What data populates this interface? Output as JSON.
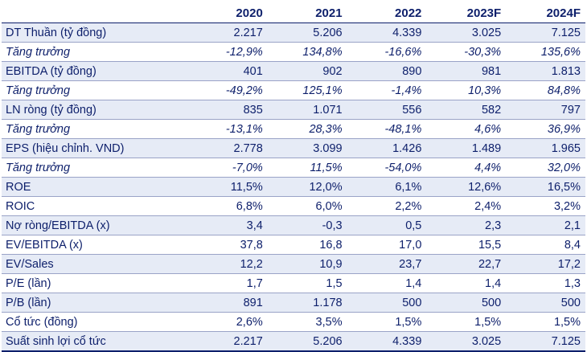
{
  "table": {
    "headers": [
      "",
      "2020",
      "2021",
      "2022",
      "2023F",
      "2024F"
    ],
    "rows": [
      {
        "label": "DT Thuần (tỷ đồng)",
        "values": [
          "2.217",
          "5.206",
          "4.339",
          "3.025",
          "7.125"
        ],
        "italic": false
      },
      {
        "label": "Tăng trưởng",
        "values": [
          "-12,9%",
          "134,8%",
          "-16,6%",
          "-30,3%",
          "135,6%"
        ],
        "italic": true
      },
      {
        "label": "EBITDA (tỷ đồng)",
        "values": [
          "401",
          "902",
          "890",
          "981",
          "1.813"
        ],
        "italic": false
      },
      {
        "label": "Tăng trưởng",
        "values": [
          "-49,2%",
          "125,1%",
          "-1,4%",
          "10,3%",
          "84,8%"
        ],
        "italic": true
      },
      {
        "label": "LN ròng (tỷ đồng)",
        "values": [
          "835",
          "1.071",
          "556",
          "582",
          "797"
        ],
        "italic": false
      },
      {
        "label": "Tăng trưởng",
        "values": [
          "-13,1%",
          "28,3%",
          "-48,1%",
          "4,6%",
          "36,9%"
        ],
        "italic": true
      },
      {
        "label": "EPS (hiệu chỉnh. VND)",
        "values": [
          "2.778",
          "3.099",
          "1.426",
          "1.489",
          "1.965"
        ],
        "italic": false
      },
      {
        "label": "Tăng trưởng",
        "values": [
          "-7,0%",
          "11,5%",
          "-54,0%",
          "4,4%",
          "32,0%"
        ],
        "italic": true
      },
      {
        "label": "ROE",
        "values": [
          "11,5%",
          "12,0%",
          "6,1%",
          "12,6%",
          "16,5%"
        ],
        "italic": false
      },
      {
        "label": "ROIC",
        "values": [
          "6,8%",
          "6,0%",
          "2,2%",
          "2,4%",
          "3,2%"
        ],
        "italic": false
      },
      {
        "label": "Nợ ròng/EBITDA (x)",
        "values": [
          "3,4",
          "-0,3",
          "0,5",
          "2,3",
          "2,1"
        ],
        "italic": false
      },
      {
        "label": "EV/EBITDA (x)",
        "values": [
          "37,8",
          "16,8",
          "17,0",
          "15,5",
          "8,4"
        ],
        "italic": false
      },
      {
        "label": "EV/Sales",
        "values": [
          "12,2",
          "10,9",
          "23,7",
          "22,7",
          "17,2"
        ],
        "italic": false
      },
      {
        "label": "P/E (lần)",
        "values": [
          "1,7",
          "1,5",
          "1,4",
          "1,4",
          "1,3"
        ],
        "italic": false
      },
      {
        "label": "P/B (lần)",
        "values": [
          "891",
          "1.178",
          "500",
          "500",
          "500"
        ],
        "italic": false
      },
      {
        "label": "Cổ tức (đồng)",
        "values": [
          "2,6%",
          "3,5%",
          "1,5%",
          "1,5%",
          "1,5%"
        ],
        "italic": false
      },
      {
        "label": "Suất sinh lợi cổ tức",
        "values": [
          "2.217",
          "5.206",
          "4.339",
          "3.025",
          "7.125"
        ],
        "italic": false
      }
    ]
  },
  "colors": {
    "text": "#0d1f6b",
    "stripe": "#e6ebf6",
    "rule": "#9aa3c7"
  }
}
